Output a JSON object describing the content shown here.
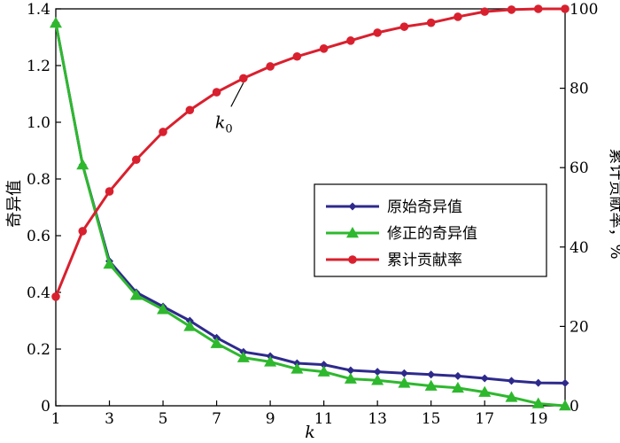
{
  "chart_data": {
    "type": "line",
    "x": [
      1,
      2,
      3,
      4,
      5,
      6,
      7,
      8,
      9,
      10,
      11,
      12,
      13,
      14,
      15,
      16,
      17,
      18,
      19,
      20
    ],
    "x_ticks": [
      1,
      3,
      5,
      7,
      9,
      11,
      13,
      15,
      17,
      19
    ],
    "xlabel": "k",
    "xlim": [
      1,
      20
    ],
    "ylabel_left": "奇异值",
    "ylim_left": [
      0,
      1.4
    ],
    "yticks_left": [
      "0",
      "0.2",
      "0.4",
      "0.6",
      "0.8",
      "1.0",
      "1.2",
      "1.4"
    ],
    "ylabel_right": "累计贡献率，%",
    "ylim_right": [
      0,
      100
    ],
    "yticks_right": [
      "0",
      "20",
      "40",
      "60",
      "80",
      "100"
    ],
    "grid": false,
    "legend_position": "center-right",
    "series": [
      {
        "name": "原始奇异值",
        "axis": "left",
        "color": "#2e2a8c",
        "marker": "diamond",
        "values": [
          1.35,
          0.85,
          0.51,
          0.4,
          0.35,
          0.3,
          0.24,
          0.19,
          0.175,
          0.15,
          0.145,
          0.125,
          0.12,
          0.115,
          0.11,
          0.105,
          0.097,
          0.088,
          0.081,
          0.08
        ]
      },
      {
        "name": "修正的奇异值",
        "axis": "left",
        "color": "#2eb82e",
        "marker": "triangle",
        "values": [
          1.35,
          0.85,
          0.5,
          0.39,
          0.34,
          0.28,
          0.22,
          0.17,
          0.155,
          0.13,
          0.12,
          0.095,
          0.09,
          0.08,
          0.07,
          0.063,
          0.048,
          0.03,
          0.008,
          0.0
        ]
      },
      {
        "name": "累计贡献率",
        "axis": "right",
        "color": "#d9202e",
        "marker": "circle",
        "values": [
          27.5,
          44,
          54,
          62,
          69,
          74.5,
          79,
          82.5,
          85.5,
          88,
          90,
          92,
          94,
          95.5,
          96.5,
          98,
          99.3,
          99.8,
          100,
          100
        ]
      }
    ],
    "annotations": [
      {
        "text": "k",
        "subscript": "0",
        "x": 8,
        "series": "累计贡献率"
      }
    ]
  }
}
